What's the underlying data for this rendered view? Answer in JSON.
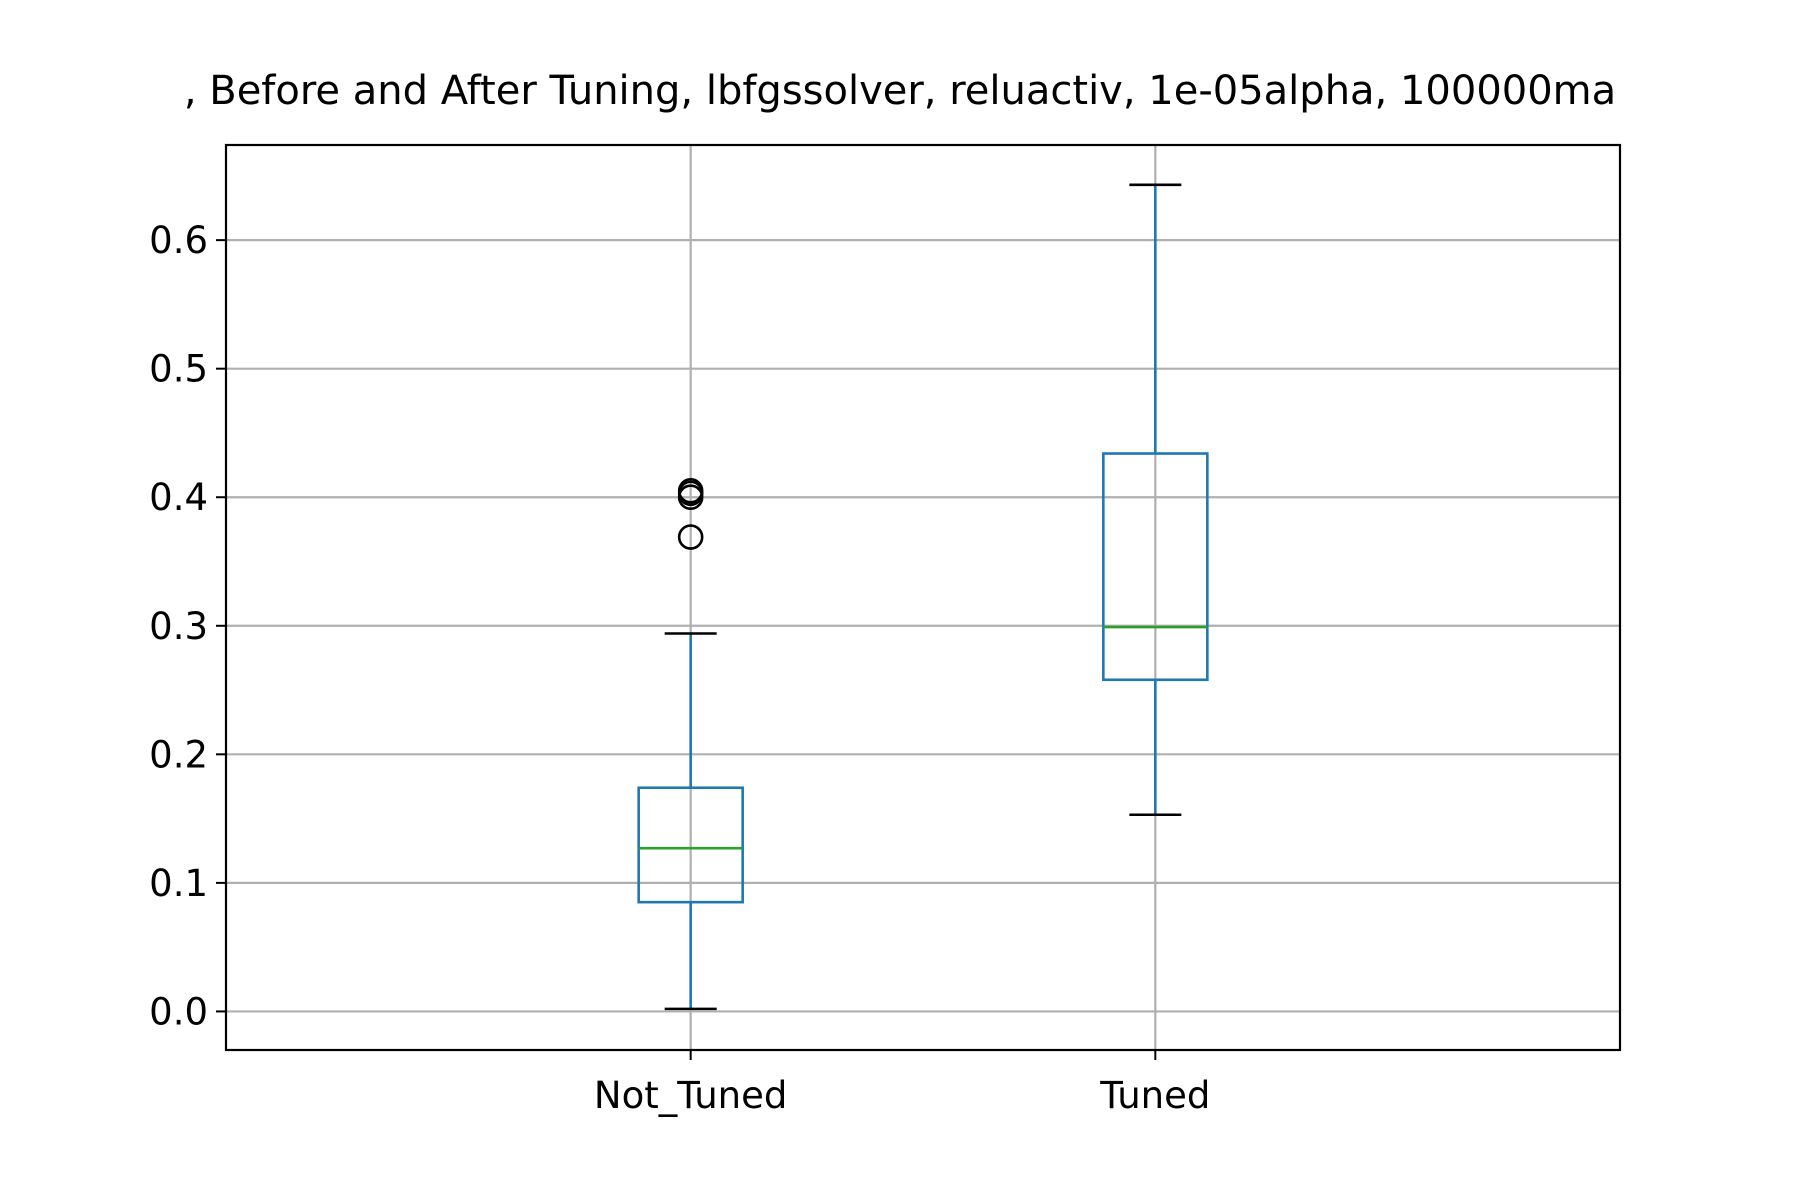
{
  "chart_data": {
    "type": "box",
    "title": ", Before and After Tuning, lbfgssolver, reluactiv, 1e-05alpha, 100000ma",
    "xlabel": "",
    "ylabel": "",
    "ylim": [
      -0.03,
      0.674
    ],
    "yticks": [
      0.0,
      0.1,
      0.2,
      0.3,
      0.4,
      0.5,
      0.6
    ],
    "ytick_labels": [
      "0.0",
      "0.1",
      "0.2",
      "0.3",
      "0.4",
      "0.5",
      "0.6"
    ],
    "grid": true,
    "categories": [
      "Not_Tuned",
      "Tuned"
    ],
    "boxes": [
      {
        "category": "Not_Tuned",
        "whisker_low": 0.002,
        "q1": 0.085,
        "median": 0.127,
        "q3": 0.174,
        "whisker_high": 0.294,
        "outliers": [
          0.369,
          0.4,
          0.403,
          0.405
        ]
      },
      {
        "category": "Tuned",
        "whisker_low": 0.153,
        "q1": 0.258,
        "median": 0.299,
        "q3": 0.434,
        "whisker_high": 0.643,
        "outliers": []
      }
    ],
    "colors": {
      "box": "#1f77b4",
      "median": "#2ca02c",
      "cap": "#000000",
      "outlier": "#000000",
      "grid": "#b0b0b0",
      "frame": "#000000"
    }
  }
}
